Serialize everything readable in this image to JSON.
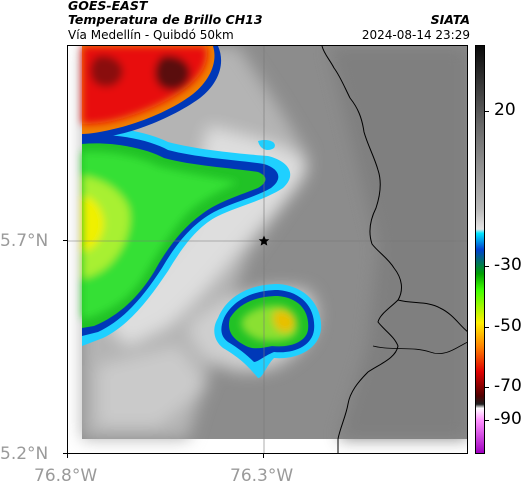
{
  "header": {
    "satellite": "GOES-EAST",
    "title": "Temperatura de Brillo CH13",
    "subtitle": "Vía Medellín - Quibdó 50km",
    "organization": "SIATA",
    "timestamp": "2024-08-14 23:29"
  },
  "axes": {
    "x_ticks": [
      "76.8°W",
      "76.3°W"
    ],
    "y_ticks": [
      "5.7°N",
      "5.2°N"
    ]
  },
  "colorbar": {
    "ticks": [
      "20",
      "-30",
      "-50",
      "-70",
      "-90"
    ]
  },
  "marker": {
    "icon": "star-icon"
  },
  "colors": {
    "background_gray": "#8e8e8e",
    "light_cloud": "#dcdcdc",
    "cold_blue": "#0030b0",
    "mid_green": "#20d020",
    "warm_yellow": "#e8e800",
    "hot_red": "#e01010",
    "boundary": "#000000"
  }
}
